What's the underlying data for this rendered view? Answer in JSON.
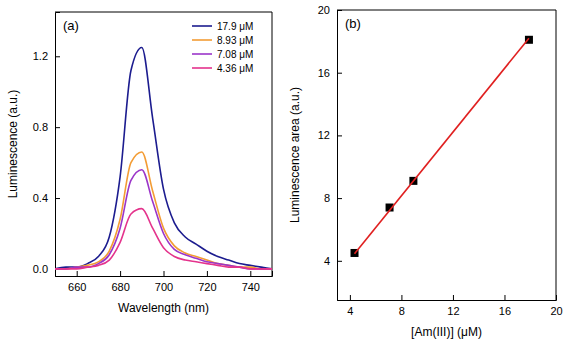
{
  "chart_data": [
    {
      "type": "line",
      "annotation": "(a)",
      "x_label": "Wavelength (nm)",
      "y_label": "Luminescence (a.u.)",
      "x": [
        650,
        655,
        660,
        665,
        670,
        675,
        680,
        685,
        690,
        695,
        700,
        705,
        710,
        715,
        720,
        725,
        730,
        735,
        740,
        745,
        750
      ],
      "series": [
        {
          "name": "17.9 μM",
          "color": "#1c1c8f",
          "values": [
            0.0,
            0.01,
            0.01,
            0.03,
            0.07,
            0.18,
            0.52,
            1.12,
            1.25,
            0.85,
            0.45,
            0.26,
            0.18,
            0.14,
            0.1,
            0.07,
            0.05,
            0.03,
            0.02,
            0.01,
            0.0
          ]
        },
        {
          "name": "8.93 μM",
          "color": "#f39c34",
          "values": [
            0.0,
            0.0,
            0.01,
            0.02,
            0.04,
            0.1,
            0.28,
            0.6,
            0.66,
            0.44,
            0.23,
            0.13,
            0.09,
            0.07,
            0.05,
            0.03,
            0.02,
            0.01,
            0.01,
            0.0,
            0.0
          ]
        },
        {
          "name": "7.08 μM",
          "color": "#9b35c9",
          "values": [
            0.0,
            0.0,
            0.01,
            0.01,
            0.03,
            0.08,
            0.23,
            0.5,
            0.56,
            0.38,
            0.2,
            0.11,
            0.08,
            0.06,
            0.04,
            0.03,
            0.02,
            0.01,
            0.0,
            0.0,
            0.0
          ]
        },
        {
          "name": "4.36 μM",
          "color": "#e4338c",
          "values": [
            0.0,
            0.0,
            0.0,
            0.01,
            0.02,
            0.05,
            0.15,
            0.31,
            0.34,
            0.23,
            0.12,
            0.07,
            0.05,
            0.04,
            0.03,
            0.02,
            0.01,
            0.01,
            0.0,
            0.0,
            0.0
          ]
        }
      ],
      "xlim": [
        650,
        750
      ],
      "xticks": [
        660,
        680,
        700,
        720,
        740
      ],
      "ylim": [
        -0.04,
        1.45
      ],
      "yticks": [
        {
          "value": 0,
          "label": "0.0"
        },
        0.4,
        0.8,
        1.2
      ],
      "legend": "upper right"
    },
    {
      "type": "scatter",
      "annotation": "(b)",
      "x_label": "[Am(III)]  (μM)",
      "y_label": "Luminescence area (a.u.)",
      "series": [
        {
          "type": "scatter",
          "marker": "square",
          "color": "#000000",
          "x": [
            4.36,
            7.08,
            8.93,
            17.9
          ],
          "values": [
            4.5,
            7.4,
            9.1,
            18.1
          ],
          "errors": [
            0.15,
            0.15,
            0.15,
            0.15
          ]
        },
        {
          "type": "line",
          "color": "#e02020",
          "x": [
            4.36,
            17.9
          ],
          "values": [
            4.45,
            18.2
          ]
        }
      ],
      "xlim": [
        3,
        20
      ],
      "xticks": [
        4,
        8,
        12,
        16,
        20
      ],
      "ylim": [
        1.5,
        20
      ],
      "yticks": [
        4,
        8,
        12,
        16,
        20
      ]
    }
  ]
}
